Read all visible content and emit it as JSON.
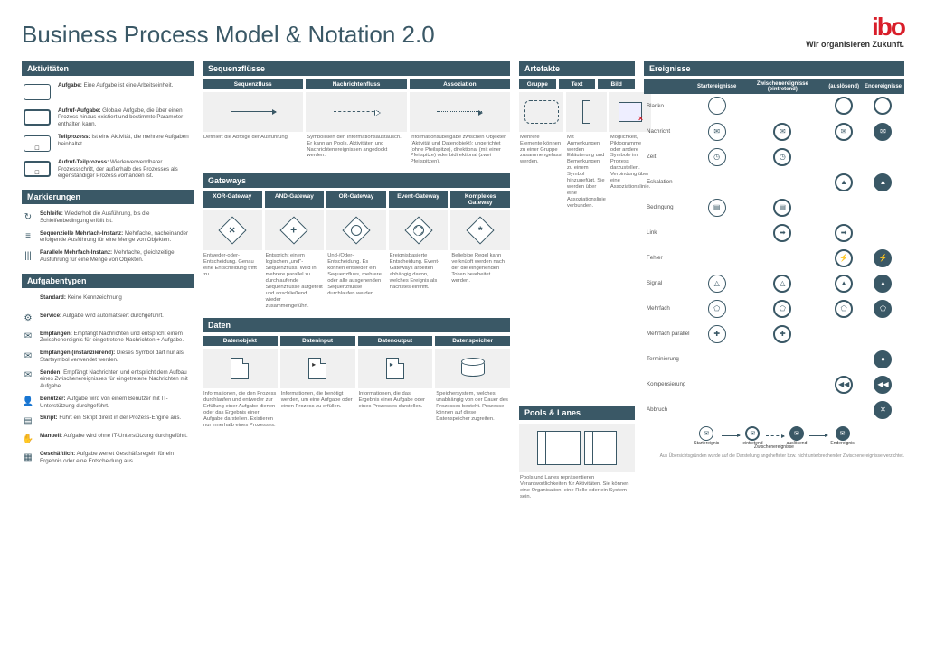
{
  "title": "Business Process Model & Notation 2.0",
  "brand": {
    "logo": "ibo",
    "tagline": "Wir organisieren Zukunft."
  },
  "colors": {
    "primary": "#3a5866",
    "accent": "#d91e2a",
    "cell_bg": "#f0f0f0",
    "text": "#333333",
    "muted": "#666666"
  },
  "sections": {
    "aktivitaeten": {
      "title": "Aktivitäten",
      "items": [
        {
          "name": "Aufgabe",
          "desc": "Eine Aufgabe ist eine Arbeitseinheit."
        },
        {
          "name": "Aufruf-Aufgabe",
          "desc": "Globale Aufgabe, die über einen Prozess hinaus existiert und bestimmte Parameter enthalten kann."
        },
        {
          "name": "Teilprozess",
          "desc": "Ist eine Aktivität, die mehrere Aufgaben beinhaltet."
        },
        {
          "name": "Aufruf-Teilprozess",
          "desc": "Wiederverwendbarer Prozessschritt, der außerhalb des Prozesses als eigenständiger Prozess vorhanden ist."
        }
      ]
    },
    "markierungen": {
      "title": "Markierungen",
      "items": [
        {
          "icon": "↻",
          "name": "Schleife",
          "desc": "Wiederholt die Ausführung, bis die Schleifenbedingung erfüllt ist."
        },
        {
          "icon": "≡",
          "name": "Sequenzielle Mehrfach-Instanz",
          "desc": "Mehrfache, nacheinander erfolgende Ausführung für eine Menge von Objekten."
        },
        {
          "icon": "|||",
          "name": "Parallele Mehrfach-Instanz",
          "desc": "Mehrfache, gleichzeitige Ausführung für eine Menge von Objekten."
        }
      ]
    },
    "aufgabentypen": {
      "title": "Aufgabentypen",
      "items": [
        {
          "icon": "",
          "name": "Standard",
          "desc": "Keine Kennzeichnung"
        },
        {
          "icon": "⚙",
          "name": "Service",
          "desc": "Aufgabe wird automatisiert durchgeführt."
        },
        {
          "icon": "✉",
          "name": "Empfangen",
          "desc": "Empfängt Nachrichten und entspricht einem Zwischenereignis für eingetretene Nachrichten + Aufgabe."
        },
        {
          "icon": "✉",
          "name": "Empfangen (instanziierend)",
          "desc": "Dieses Symbol darf nur als Startsymbol verwendet werden."
        },
        {
          "icon": "✉",
          "name": "Senden",
          "desc": "Empfängt Nachrichten und entspricht dem Aufbau eines Zwischenereignisses für eingetretene Nachrichten mit Aufgabe."
        },
        {
          "icon": "👤",
          "name": "Benutzer",
          "desc": "Aufgabe wird von einem Benutzer mit IT-Unterstützung durchgeführt."
        },
        {
          "icon": "▤",
          "name": "Skript",
          "desc": "Führt ein Skript direkt in der Prozess-Engine aus."
        },
        {
          "icon": "✋",
          "name": "Manuell",
          "desc": "Aufgabe wird ohne IT-Unterstützung durchgeführt."
        },
        {
          "icon": "▦",
          "name": "Geschäftlich",
          "desc": "Aufgabe wertet Geschäftsregeln für ein Ergebnis oder eine Entscheidung aus."
        }
      ]
    },
    "sequenzfluesse": {
      "title": "Sequenzflüsse",
      "items": [
        {
          "name": "Sequenzfluss",
          "desc": "Definiert die Abfolge der Ausführung."
        },
        {
          "name": "Nachrichtenfluss",
          "desc": "Symbolisiert den Informationsaustausch. Er kann an Pools, Aktivitäten und Nachrichtenereignissen angedockt werden."
        },
        {
          "name": "Assoziation",
          "desc": "Informationsübergabe zwischen Objekten (Aktivität und Datenobjekt): ungerichtet (ohne Pfeilspitze), direktional (mit einer Pfeilspitze) oder bidirektional (zwei Pfeilspitzen)."
        }
      ]
    },
    "gateways": {
      "title": "Gateways",
      "items": [
        {
          "name": "XOR-Gateway",
          "sym": "×",
          "desc": "Entweder-oder-Entscheidung. Genau eine Entscheidung trifft zu."
        },
        {
          "name": "AND-Gateway",
          "sym": "+",
          "desc": "Entspricht einem logischen „und“-Sequenzfluss. Wird in mehrere parallel zu durchlaufende Sequenzflüsse aufgeteilt und anschließend wieder zusammengeführt."
        },
        {
          "name": "OR-Gateway",
          "sym": "○",
          "desc": "Und-/Oder-Entscheidung. Es können entweder ein Sequenzfluss, mehrere oder alle ausgehenden Sequenzflüsse durchlaufen werden."
        },
        {
          "name": "Event-Gateway",
          "sym": "⦿",
          "desc": "Ereignisbasierte Entscheidung. Event-Gateways arbeiten abhängig davon, welches Ereignis als nächstes eintrifft."
        },
        {
          "name": "Komplexes Gateway",
          "sym": "*",
          "desc": "Beliebige Regel kann verknüpft werden nach der die eingehenden Token bearbeitet werden."
        }
      ]
    },
    "daten": {
      "title": "Daten",
      "items": [
        {
          "name": "Datenobjekt",
          "desc": "Informationen, die den Prozess durchlaufen und entweder zur Erfüllung einer Aufgabe dienen oder das Ergebnis einer Aufgabe darstellen. Existieren nur innerhalb eines Prozesses."
        },
        {
          "name": "Dateninput",
          "desc": "Informationen, die benötigt werden, um eine Aufgabe oder einen Prozess zu erfüllen."
        },
        {
          "name": "Datenoutput",
          "desc": "Informationen, die das Ergebnis einer Aufgabe oder eines Prozesses darstellen."
        },
        {
          "name": "Datenspeicher",
          "desc": "Speichersystem, welches unabhängig von der Dauer des Prozesses besteht. Prozesse können auf diese Datenspeicher zugreifen."
        }
      ]
    },
    "artefakte": {
      "title": "Artefakte",
      "items": [
        {
          "name": "Gruppe",
          "desc": "Mehrere Elemente können zu einer Gruppe zusammengefasst werden."
        },
        {
          "name": "Text",
          "desc": "Mit Anmerkungen werden Erläuterung und Bemerkungen zu einem Symbol hinzugefügt. Sie werden über eine Assoziationslinie verbunden."
        },
        {
          "name": "Bild",
          "desc": "Möglichkeit, Piktogramme oder andere Symbole im Prozess darzustellen. Verbindung über eine Assoziationslinie."
        }
      ]
    },
    "pools": {
      "title": "Pools & Lanes",
      "desc": "Pools und Lanes repräsentieren Verantwortlichkeiten für Aktivitäten. Sie können eine Organisation, eine Rolle oder ein System sein."
    },
    "ereignisse": {
      "title": "Ereignisse",
      "cols": [
        "Startereignisse",
        "Zwischenereignisse (eintretend)",
        "(auslösend)",
        "Endereignisse"
      ],
      "rows": [
        {
          "label": "Blanko",
          "cells": [
            "thin:",
            "",
            "dbl:",
            "thick:"
          ]
        },
        {
          "label": "Nachricht",
          "cells": [
            "thin:✉",
            "dbl:✉",
            "dbl fill-i:✉",
            "thick fill:✉"
          ]
        },
        {
          "label": "Zeit",
          "cells": [
            "thin:◷",
            "dbl:◷",
            "",
            ""
          ]
        },
        {
          "label": "Eskalation",
          "cells": [
            "",
            "",
            "dbl:▲",
            "thick fill:▲"
          ]
        },
        {
          "label": "Bedingung",
          "cells": [
            "thin:▤",
            "dbl:▤",
            "",
            ""
          ]
        },
        {
          "label": "Link",
          "cells": [
            "",
            "dbl:➡",
            "dbl fill-i:➡",
            ""
          ]
        },
        {
          "label": "Fehler",
          "cells": [
            "",
            "",
            "dbl:⚡",
            "thick fill:⚡"
          ]
        },
        {
          "label": "Signal",
          "cells": [
            "thin:△",
            "dbl:△",
            "dbl fill-i:▲",
            "thick fill:▲"
          ]
        },
        {
          "label": "Mehrfach",
          "cells": [
            "thin:⬠",
            "dbl:⬠",
            "dbl fill-i:⬠",
            "thick fill:⬠"
          ]
        },
        {
          "label": "Mehrfach parallel",
          "cells": [
            "thin:✚",
            "dbl:✚",
            "",
            ""
          ]
        },
        {
          "label": "Terminierung",
          "cells": [
            "",
            "",
            "",
            "thick fill:●"
          ]
        },
        {
          "label": "Kompensierung",
          "cells": [
            "",
            "",
            "dbl:◀◀",
            "thick fill:◀◀"
          ]
        },
        {
          "label": "Abbruch",
          "cells": [
            "",
            "",
            "",
            "thick fill:✕"
          ]
        }
      ],
      "flow_labels": [
        "Startereignis",
        "Zwischenereignisse",
        "Endereignis",
        "eintretend",
        "auslösend"
      ],
      "footnote": "Aus Übersichtsgründen wurde auf die Darstellung angehefteter bzw. nicht unterbrechender Zwischenereignisse verzichtet."
    }
  }
}
